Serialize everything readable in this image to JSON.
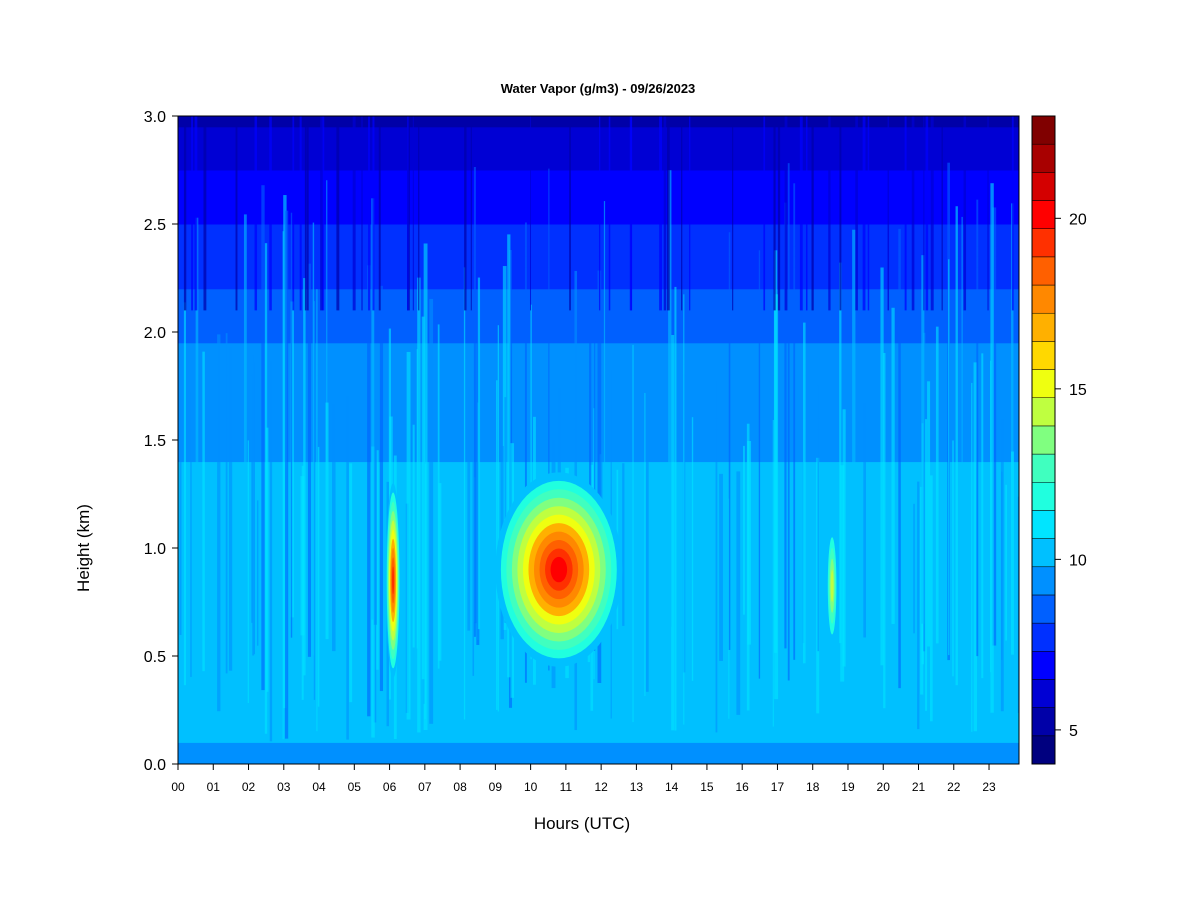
{
  "chart_data": {
    "type": "heatmap",
    "title": "Water Vapor (g/m3) - 09/26/2023",
    "xlabel": "Hours (UTC)",
    "ylabel": "Height (km)",
    "x_ticks": [
      "00",
      "01",
      "02",
      "03",
      "04",
      "05",
      "06",
      "07",
      "08",
      "09",
      "10",
      "11",
      "12",
      "13",
      "14",
      "15",
      "16",
      "17",
      "18",
      "19",
      "20",
      "21",
      "22",
      "23"
    ],
    "y_ticks": [
      "0.0",
      "0.5",
      "1.0",
      "1.5",
      "2.0",
      "2.5",
      "3.0"
    ],
    "xlim": [
      0,
      23.85
    ],
    "ylim": [
      0,
      3.0
    ],
    "colorbar": {
      "range": [
        4,
        23
      ],
      "tick_values": [
        5,
        10,
        15,
        20
      ],
      "tick_labels": [
        "5",
        "10",
        "15",
        "20"
      ],
      "colors": [
        "#00007f",
        "#0000a8",
        "#0000d4",
        "#0000ff",
        "#0030ff",
        "#0060ff",
        "#0090ff",
        "#00c0ff",
        "#00e5ff",
        "#20ffdf",
        "#40ffbf",
        "#80ff80",
        "#bfff40",
        "#efff10",
        "#ffd800",
        "#ffb000",
        "#ff8800",
        "#ff6000",
        "#ff3000",
        "#ff0000",
        "#d40000",
        "#a80000",
        "#800000"
      ]
    },
    "features": [
      {
        "hour_start": 5.9,
        "hour_end": 6.3,
        "height_min": 0.4,
        "height_max": 1.3,
        "peak": 19
      },
      {
        "hour_start": 9.0,
        "hour_end": 12.6,
        "height_min": 0.45,
        "height_max": 1.35,
        "peak": 20
      },
      {
        "hour_start": 18.4,
        "hour_end": 18.7,
        "height_min": 0.55,
        "height_max": 1.1,
        "peak": 14
      }
    ]
  }
}
